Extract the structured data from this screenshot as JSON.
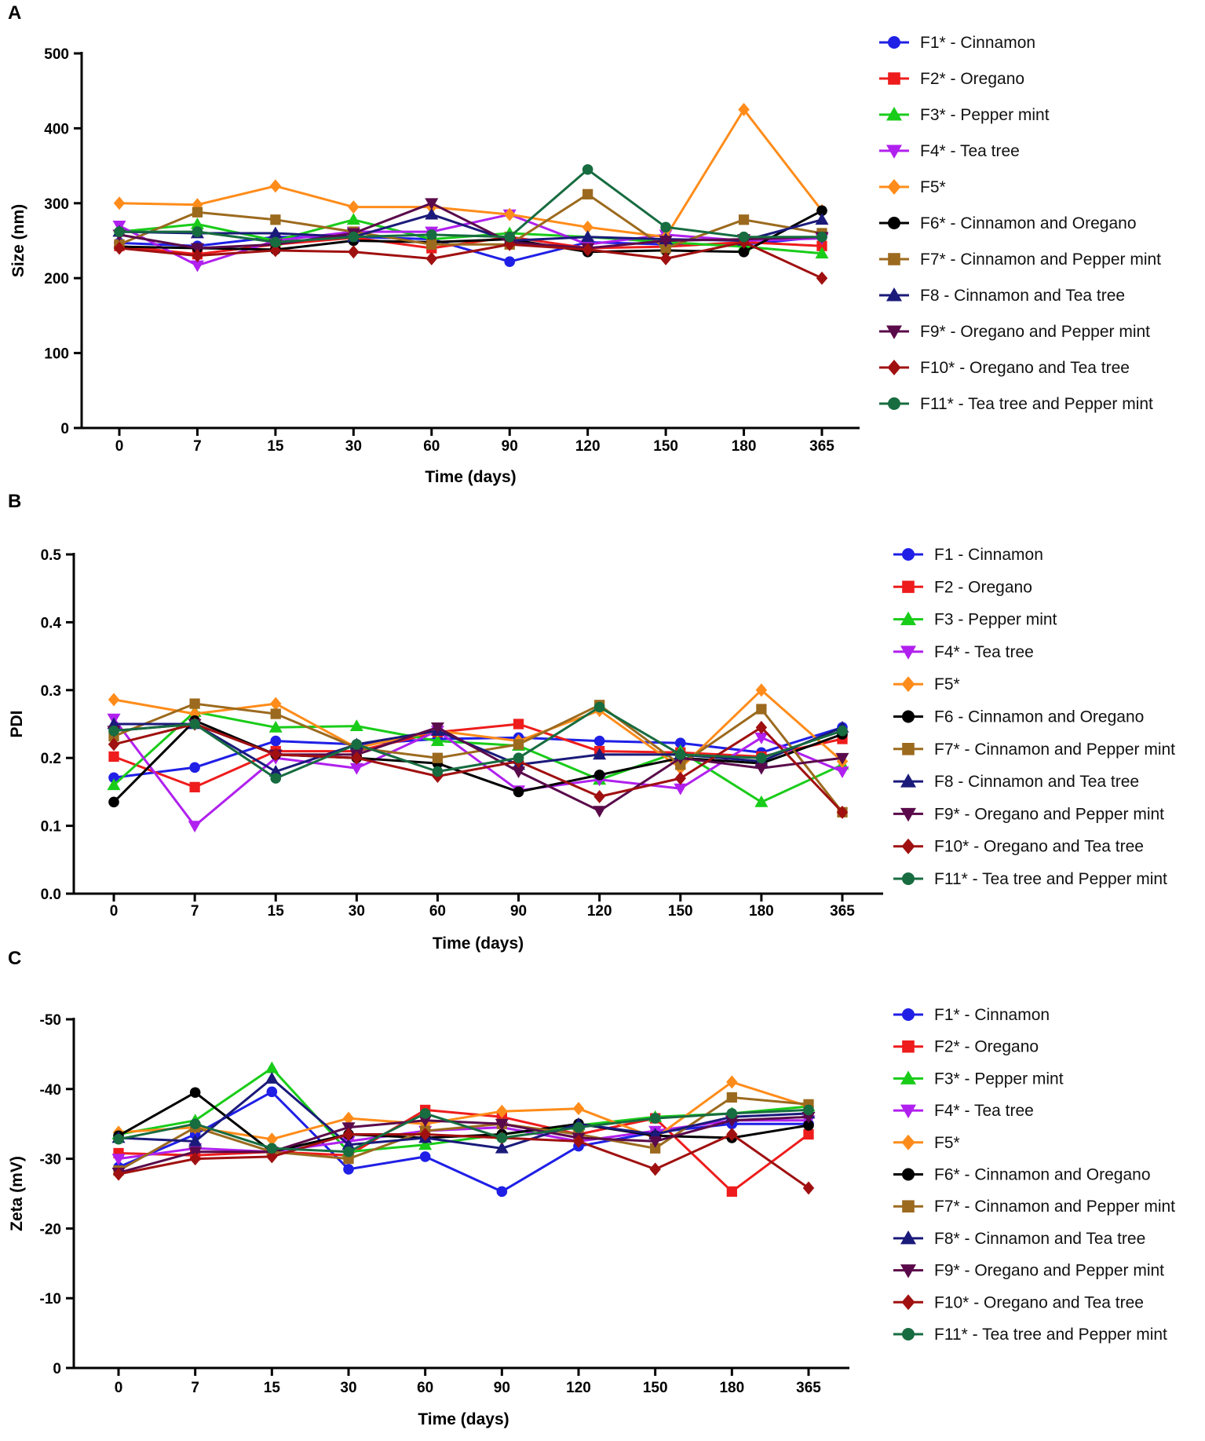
{
  "chart_data": [
    {
      "panel": "A",
      "type": "line",
      "title": "",
      "xlabel": "Time (days)",
      "ylabel": "Size (nm)",
      "ylim": [
        0,
        500
      ],
      "yticks": [
        "0",
        "100",
        "200",
        "300",
        "400",
        "500"
      ],
      "categories": [
        "0",
        "7",
        "15",
        "30",
        "60",
        "90",
        "120",
        "150",
        "180",
        "365"
      ],
      "legend_position": "right",
      "series": [
        {
          "name": "F1* - Cinnamon",
          "color": "#1f1fe6",
          "marker": "circle",
          "values": [
            247,
            243,
            255,
            255,
            252,
            222,
            248,
            245,
            245,
            255
          ]
        },
        {
          "name": "F2* - Oregano",
          "color": "#ee1c1c",
          "marker": "square",
          "values": [
            243,
            232,
            245,
            254,
            240,
            255,
            240,
            242,
            248,
            243
          ]
        },
        {
          "name": "F3* - Pepper mint",
          "color": "#19cc19",
          "marker": "triangle-up",
          "values": [
            262,
            272,
            250,
            278,
            252,
            260,
            255,
            248,
            242,
            233
          ]
        },
        {
          "name": "F4* - Tea tree",
          "color": "#b020ee",
          "marker": "triangle-down",
          "values": [
            270,
            217,
            250,
            262,
            262,
            285,
            245,
            258,
            250,
            253
          ]
        },
        {
          "name": "F5*",
          "color": "#ff8c1a",
          "marker": "diamond",
          "values": [
            300,
            298,
            323,
            295,
            295,
            285,
            268,
            255,
            425,
            290
          ]
        },
        {
          "name": "F6* - Cinnamon and Oregano",
          "color": "#000000",
          "marker": "circle",
          "values": [
            242,
            240,
            238,
            250,
            248,
            252,
            235,
            237,
            235,
            290
          ]
        },
        {
          "name": "F7* - Cinnamon and Pepper mint",
          "color": "#9c6a1e",
          "marker": "square",
          "values": [
            245,
            288,
            278,
            262,
            245,
            245,
            312,
            240,
            278,
            260
          ]
        },
        {
          "name": "F8 - Cinnamon and Tea tree",
          "color": "#1a1a7a",
          "marker": "triangle-up",
          "values": [
            262,
            260,
            260,
            255,
            285,
            250,
            255,
            252,
            250,
            278
          ]
        },
        {
          "name": "F9* - Oregano and Pepper mint",
          "color": "#5a0a4a",
          "marker": "triangle-down",
          "values": [
            258,
            240,
            245,
            260,
            300,
            248,
            240,
            250,
            252,
            255
          ]
        },
        {
          "name": "F10* - Oregano and  Tea tree",
          "color": "#a01010",
          "marker": "diamond",
          "values": [
            240,
            230,
            237,
            235,
            226,
            245,
            238,
            226,
            248,
            200
          ]
        },
        {
          "name": "F11* - Tea tree and Pepper mint",
          "color": "#176c40",
          "marker": "circle",
          "values": [
            262,
            262,
            248,
            255,
            258,
            255,
            345,
            268,
            255,
            255
          ]
        }
      ]
    },
    {
      "panel": "B",
      "type": "line",
      "title": "",
      "xlabel": "Time (days)",
      "ylabel": "PDI",
      "ylim": [
        0,
        0.5
      ],
      "yticks": [
        "0.0",
        "0.1",
        "0.2",
        "0.3",
        "0.4",
        "0.5"
      ],
      "categories": [
        "0",
        "7",
        "15",
        "30",
        "60",
        "90",
        "120",
        "150",
        "180",
        "365"
      ],
      "legend_position": "right",
      "series": [
        {
          "name": "F1 - Cinnamon",
          "color": "#1f1fe6",
          "marker": "circle",
          "values": [
            0.171,
            0.186,
            0.225,
            0.22,
            0.228,
            0.23,
            0.225,
            0.222,
            0.208,
            0.245
          ]
        },
        {
          "name": "F2 - Oregano",
          "color": "#ee1c1c",
          "marker": "square",
          "values": [
            0.202,
            0.157,
            0.21,
            0.21,
            0.238,
            0.25,
            0.21,
            0.208,
            0.202,
            0.228
          ]
        },
        {
          "name": "F3 - Pepper mint",
          "color": "#19cc19",
          "marker": "triangle-up",
          "values": [
            0.16,
            0.268,
            0.245,
            0.247,
            0.225,
            0.218,
            0.168,
            0.21,
            0.135,
            0.19
          ]
        },
        {
          "name": "F4* - Tea tree",
          "color": "#b020ee",
          "marker": "triangle-down",
          "values": [
            0.258,
            0.1,
            0.2,
            0.185,
            0.24,
            0.152,
            0.168,
            0.155,
            0.23,
            0.18
          ]
        },
        {
          "name": "F5*",
          "color": "#ff8c1a",
          "marker": "diamond",
          "values": [
            0.286,
            0.265,
            0.28,
            0.215,
            0.24,
            0.225,
            0.27,
            0.185,
            0.3,
            0.195
          ]
        },
        {
          "name": "F6 - Cinnamon and Oregano",
          "color": "#000000",
          "marker": "circle",
          "values": [
            0.135,
            0.255,
            0.205,
            0.2,
            0.192,
            0.15,
            0.175,
            0.2,
            0.192,
            0.235
          ]
        },
        {
          "name": "F7* - Cinnamon and Pepper mint",
          "color": "#9c6a1e",
          "marker": "square",
          "values": [
            0.232,
            0.28,
            0.265,
            0.215,
            0.2,
            0.22,
            0.278,
            0.19,
            0.272,
            0.12
          ]
        },
        {
          "name": "F8 - Cinnamon and Tea tree",
          "color": "#1a1a7a",
          "marker": "triangle-up",
          "values": [
            0.25,
            0.25,
            0.18,
            0.22,
            0.24,
            0.19,
            0.205,
            0.205,
            0.195,
            0.245
          ]
        },
        {
          "name": "F9* - Oregano and Pepper mint",
          "color": "#5a0a4a",
          "marker": "triangle-down",
          "values": [
            0.24,
            0.25,
            0.205,
            0.205,
            0.245,
            0.18,
            0.122,
            0.2,
            0.185,
            0.2
          ]
        },
        {
          "name": "F10* - Oregano and  Tea tree",
          "color": "#a01010",
          "marker": "diamond",
          "values": [
            0.22,
            0.25,
            0.205,
            0.2,
            0.173,
            0.195,
            0.143,
            0.17,
            0.245,
            0.12
          ]
        },
        {
          "name": "F11* - Tea tree and Pepper mint",
          "color": "#176c40",
          "marker": "circle",
          "values": [
            0.24,
            0.25,
            0.17,
            0.22,
            0.18,
            0.2,
            0.275,
            0.205,
            0.2,
            0.24
          ]
        }
      ]
    },
    {
      "panel": "C",
      "type": "line",
      "title": "",
      "xlabel": "Time (days)",
      "ylabel": "Zeta  (mV)",
      "ylim": [
        0,
        -50
      ],
      "yticks": [
        "0",
        "-10",
        "-20",
        "-30",
        "-40",
        "-50"
      ],
      "categories": [
        "0",
        "7",
        "15",
        "30",
        "60",
        "90",
        "120",
        "150",
        "180",
        "365"
      ],
      "legend_position": "right",
      "series": [
        {
          "name": "F1* - Cinnamon",
          "color": "#1f1fe6",
          "marker": "circle",
          "values": [
            -28.8,
            -33.5,
            -39.6,
            -28.5,
            -30.3,
            -25.3,
            -31.8,
            -33.8,
            -35.0,
            -35.0
          ]
        },
        {
          "name": "F2* - Oregano",
          "color": "#ee1c1c",
          "marker": "square",
          "values": [
            -30.8,
            -30.5,
            -31.0,
            -30.5,
            -37.0,
            -36.0,
            -33.5,
            -35.8,
            -25.3,
            -33.5
          ]
        },
        {
          "name": "F3* - Pepper mint",
          "color": "#19cc19",
          "marker": "triangle-up",
          "values": [
            -33.5,
            -35.5,
            -43.0,
            -31.0,
            -32.0,
            -33.5,
            -34.8,
            -36.0,
            -36.5,
            -37.5
          ]
        },
        {
          "name": "F4* - Tea tree",
          "color": "#b020ee",
          "marker": "triangle-down",
          "values": [
            -30.0,
            -31.5,
            -31.0,
            -32.5,
            -34.0,
            -34.5,
            -32.5,
            -34.0,
            -35.5,
            -35.5
          ]
        },
        {
          "name": "F5*",
          "color": "#ff8c1a",
          "marker": "diamond",
          "values": [
            -33.8,
            -34.5,
            -32.8,
            -35.8,
            -35.0,
            -36.8,
            -37.2,
            -33.0,
            -41.0,
            -37.5
          ]
        },
        {
          "name": "F6* - Cinnamon and Oregano",
          "color": "#000000",
          "marker": "circle",
          "values": [
            -33.3,
            -39.5,
            -31.0,
            -33.5,
            -33.0,
            -33.5,
            -35.0,
            -33.3,
            -33.0,
            -34.8
          ]
        },
        {
          "name": "F7* - Cinnamon and Pepper mint",
          "color": "#9c6a1e",
          "marker": "square",
          "values": [
            -28.3,
            -34.5,
            -31.0,
            -30.0,
            -34.0,
            -35.0,
            -33.5,
            -31.5,
            -38.8,
            -37.8
          ]
        },
        {
          "name": "F8* - Cinnamon and Tea tree",
          "color": "#1a1a7a",
          "marker": "triangle-up",
          "values": [
            -33.0,
            -32.5,
            -41.5,
            -32.0,
            -33.0,
            -31.5,
            -35.0,
            -33.5,
            -36.0,
            -36.5
          ]
        },
        {
          "name": "F9* - Oregano and Pepper mint",
          "color": "#5a0a4a",
          "marker": "triangle-down",
          "values": [
            -28.0,
            -31.0,
            -31.0,
            -34.5,
            -35.5,
            -35.0,
            -33.0,
            -32.5,
            -35.5,
            -36.0
          ]
        },
        {
          "name": "F10* - Oregano and  Tea tree",
          "color": "#a01010",
          "marker": "diamond",
          "values": [
            -27.8,
            -30.0,
            -30.3,
            -33.5,
            -33.5,
            -33.0,
            -32.5,
            -28.5,
            -33.5,
            -25.8
          ]
        },
        {
          "name": "F11* - Tea tree and Pepper mint",
          "color": "#176c40",
          "marker": "circle",
          "values": [
            -32.8,
            -35.0,
            -31.5,
            -31.0,
            -36.5,
            -33.0,
            -34.5,
            -35.8,
            -36.5,
            -37.0
          ]
        }
      ]
    }
  ]
}
